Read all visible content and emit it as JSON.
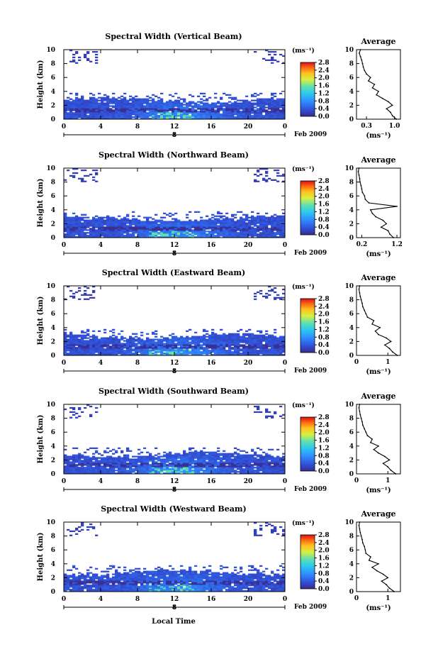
{
  "figure": {
    "xlabel": "Local Time",
    "ylabel": "Height (km)",
    "date_marker": "8",
    "date_label": "Feb 2009",
    "colorbar_unit": "(ms⁻¹)",
    "avg_title": "Average",
    "avg_xlabel": "(ms⁻¹)"
  },
  "chart_data": [
    {
      "type": "heatmap",
      "title": "Spectral Width (Vertical Beam)",
      "xlabel": "",
      "ylabel": "Height (km)",
      "x_ticks": [
        "0",
        "4",
        "8",
        "12",
        "16",
        "20",
        "0"
      ],
      "y_ticks": [
        "0",
        "2",
        "4",
        "6",
        "8",
        "10"
      ],
      "xlim": [
        0,
        24
      ],
      "ylim": [
        0,
        10
      ],
      "colorbar": {
        "unit": "(ms⁻¹)",
        "range": [
          0,
          3.0
        ],
        "ticks": [
          "0.0",
          "0.4",
          "0.8",
          "1.2",
          "1.6",
          "2.0",
          "2.4",
          "2.8"
        ]
      },
      "profile": {
        "title": "Average",
        "xlabel": "(ms⁻¹)",
        "x_ticks": [
          "0.3",
          "1.0"
        ],
        "xlim": [
          0.05,
          1.15
        ],
        "heights": [
          0,
          0.5,
          1,
          1.5,
          2,
          2.5,
          3,
          3.5,
          4,
          4.5,
          5,
          5.5,
          6,
          6.5,
          7,
          7.5,
          8,
          8.5,
          9,
          9.5,
          10
        ],
        "values": [
          1.05,
          0.95,
          0.9,
          0.8,
          0.95,
          0.85,
          0.7,
          0.55,
          0.6,
          0.45,
          0.5,
          0.35,
          0.4,
          0.3,
          0.25,
          0.22,
          0.2,
          0.18,
          0.15,
          0.12,
          0.15
        ]
      }
    },
    {
      "type": "heatmap",
      "title": "Spectral Width (Northward Beam)",
      "xlabel": "",
      "ylabel": "Height (km)",
      "x_ticks": [
        "0",
        "4",
        "8",
        "12",
        "16",
        "20",
        "0"
      ],
      "y_ticks": [
        "0",
        "2",
        "4",
        "6",
        "8",
        "10"
      ],
      "xlim": [
        0,
        24
      ],
      "ylim": [
        0,
        10
      ],
      "colorbar": {
        "unit": "(ms⁻¹)",
        "range": [
          0,
          3.0
        ],
        "ticks": [
          "0.0",
          "0.4",
          "0.8",
          "1.2",
          "1.6",
          "2.0",
          "2.4",
          "2.8"
        ]
      },
      "profile": {
        "title": "Average",
        "xlabel": "(ms⁻¹)",
        "x_ticks": [
          "0.2",
          "1.2"
        ],
        "xlim": [
          0.05,
          1.3
        ],
        "heights": [
          0,
          0.5,
          1,
          1.5,
          2,
          2.5,
          3,
          3.5,
          4,
          4.5,
          5,
          5.5,
          6,
          6.5,
          7,
          7.5,
          8,
          8.5,
          9,
          9.5,
          10
        ],
        "values": [
          1.1,
          1.0,
          0.95,
          0.75,
          0.9,
          0.8,
          0.6,
          0.5,
          0.45,
          1.2,
          0.4,
          0.3,
          0.28,
          0.22,
          0.2,
          0.18,
          0.15,
          0.14,
          0.12,
          0.1,
          0.12
        ]
      }
    },
    {
      "type": "heatmap",
      "title": "Spectral Width (Eastward Beam)",
      "xlabel": "",
      "ylabel": "Height (km)",
      "x_ticks": [
        "0",
        "4",
        "8",
        "12",
        "16",
        "20",
        "0"
      ],
      "y_ticks": [
        "0",
        "2",
        "4",
        "6",
        "8",
        "10"
      ],
      "xlim": [
        0,
        24
      ],
      "ylim": [
        0,
        10
      ],
      "colorbar": {
        "unit": "(ms⁻¹)",
        "range": [
          0,
          3.0
        ],
        "ticks": [
          "0.0",
          "0.4",
          "0.8",
          "1.2",
          "1.6",
          "2.0",
          "2.4",
          "2.8"
        ]
      },
      "profile": {
        "title": "Average",
        "xlabel": "(ms⁻¹)",
        "x_ticks": [
          "0",
          "1"
        ],
        "xlim": [
          0,
          1.4
        ],
        "heights": [
          0,
          0.5,
          1,
          1.5,
          2,
          2.5,
          3,
          3.5,
          4,
          4.5,
          5,
          5.5,
          6,
          6.5,
          7,
          7.5,
          8,
          8.5,
          9,
          9.5,
          10
        ],
        "values": [
          1.3,
          1.15,
          1.05,
          0.9,
          1.1,
          0.95,
          0.7,
          0.6,
          0.75,
          0.5,
          0.55,
          0.35,
          0.3,
          0.25,
          0.2,
          0.18,
          0.15,
          0.12,
          0.1,
          0.08,
          0.1
        ]
      }
    },
    {
      "type": "heatmap",
      "title": "Spectral Width (Southward Beam)",
      "xlabel": "",
      "ylabel": "Height (km)",
      "x_ticks": [
        "0",
        "4",
        "8",
        "12",
        "16",
        "20",
        "0"
      ],
      "y_ticks": [
        "0",
        "2",
        "4",
        "6",
        "8",
        "10"
      ],
      "xlim": [
        0,
        24
      ],
      "ylim": [
        0,
        10
      ],
      "colorbar": {
        "unit": "(ms⁻¹)",
        "range": [
          0,
          3.0
        ],
        "ticks": [
          "0.0",
          "0.4",
          "0.8",
          "1.2",
          "1.6",
          "2.0",
          "2.4",
          "2.8"
        ]
      },
      "profile": {
        "title": "Average",
        "xlabel": "(ms⁻¹)",
        "x_ticks": [
          "0",
          "1"
        ],
        "xlim": [
          0,
          1.4
        ],
        "heights": [
          0,
          0.5,
          1,
          1.5,
          2,
          2.5,
          3,
          3.5,
          4,
          4.5,
          5,
          5.5,
          6,
          6.5,
          7,
          7.5,
          8,
          8.5,
          9,
          9.5,
          10
        ],
        "values": [
          1.25,
          1.1,
          1.0,
          0.85,
          1.05,
          0.9,
          0.7,
          0.55,
          0.7,
          0.45,
          0.5,
          0.35,
          0.3,
          0.25,
          0.2,
          0.18,
          0.15,
          0.12,
          0.1,
          0.08,
          0.1
        ]
      }
    },
    {
      "type": "heatmap",
      "title": "Spectral Width (Westward Beam)",
      "xlabel": "Local Time",
      "ylabel": "Height (km)",
      "x_ticks": [
        "0",
        "4",
        "8",
        "12",
        "16",
        "20",
        "0"
      ],
      "y_ticks": [
        "0",
        "2",
        "4",
        "6",
        "8",
        "10"
      ],
      "xlim": [
        0,
        24
      ],
      "ylim": [
        0,
        10
      ],
      "colorbar": {
        "unit": "(ms⁻¹)",
        "range": [
          0,
          3.0
        ],
        "ticks": [
          "0.0",
          "0.4",
          "0.8",
          "1.2",
          "1.6",
          "2.0",
          "2.4",
          "2.8"
        ]
      },
      "profile": {
        "title": "Average",
        "xlabel": "(ms⁻¹)",
        "x_ticks": [
          "0",
          "1"
        ],
        "xlim": [
          0,
          1.4
        ],
        "heights": [
          0,
          0.5,
          1,
          1.5,
          2,
          2.5,
          3,
          3.5,
          4,
          4.5,
          5,
          5.5,
          6,
          6.5,
          7,
          7.5,
          8,
          8.5,
          9,
          9.5,
          10
        ],
        "values": [
          1.2,
          1.05,
          0.95,
          0.8,
          1.0,
          0.85,
          0.65,
          0.5,
          0.7,
          0.4,
          0.45,
          0.3,
          0.28,
          0.25,
          0.2,
          0.18,
          0.15,
          0.12,
          0.1,
          0.08,
          0.1
        ]
      }
    }
  ]
}
